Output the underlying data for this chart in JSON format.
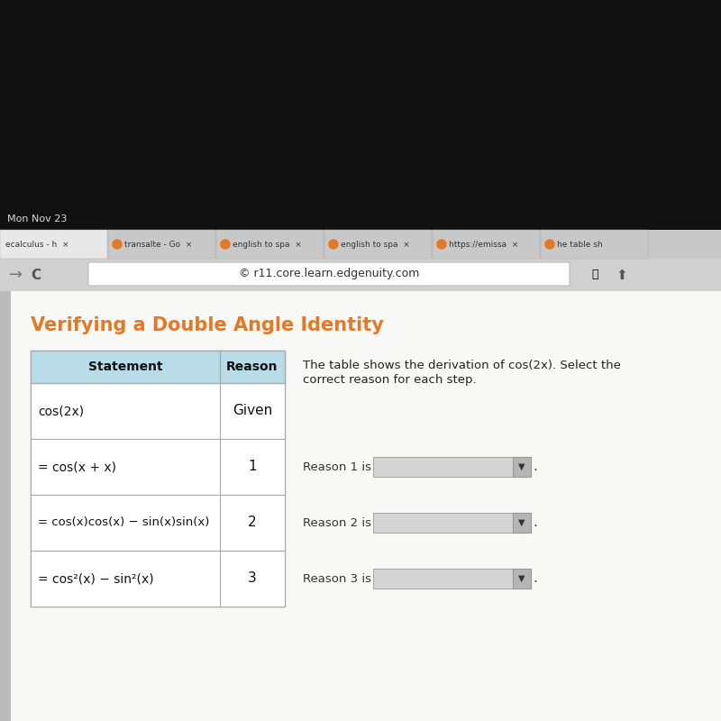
{
  "title": "Verifying a Double Angle Identity",
  "title_color": "#E87722",
  "header_bg": "#add8e6",
  "table_statements": [
    "cos(2x)",
    "= cos(x + x)",
    "= cos(x)cos(x) − sin(x)sin(x)",
    "= cos²(x) − sin²(x)"
  ],
  "table_reasons": [
    "Given",
    "1",
    "2",
    "3"
  ],
  "description_line1": "The table shows the derivation of cos(2x). Select the",
  "description_line2": "correct reason for each step.",
  "reason_labels": [
    "Reason 1 is",
    "Reason 2 is",
    "Reason 3 is"
  ],
  "url_bar_text": "© r11.core.learn.edgenuity.com",
  "tab_texts": [
    "ecalculus - h  ×",
    "transalte - Go  ×",
    "english to spa  ×",
    "english to spa  ×",
    "https://emissa  ×",
    "he table sh"
  ],
  "dark_bg": "#1a1a1a",
  "browser_chrome_bg": "#d4d4d4",
  "page_bg": "#f0f0ee",
  "content_bg": "#f5f5f5",
  "mon_nov": "Mon Nov 23"
}
